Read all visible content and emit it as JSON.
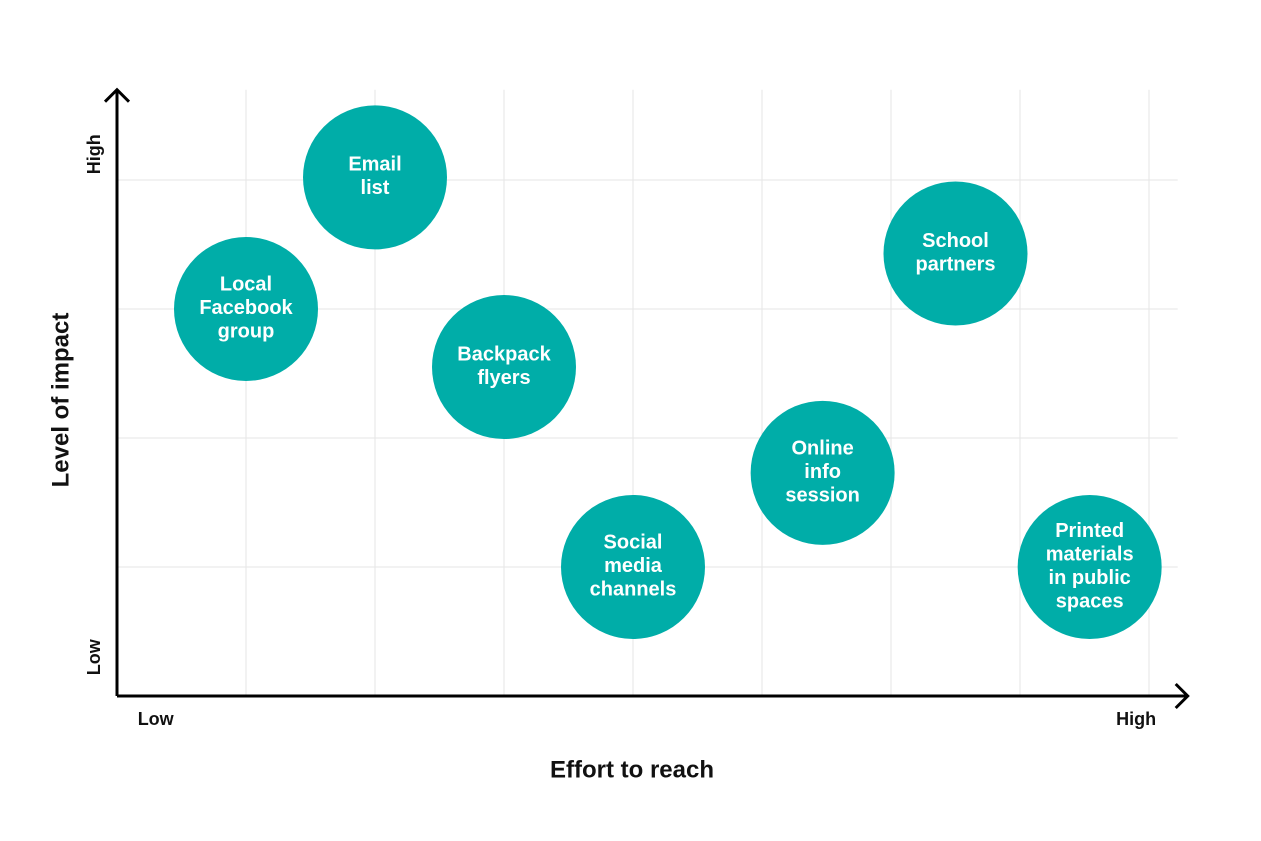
{
  "chart_data": {
    "type": "scatter",
    "x_label": "Effort to reach",
    "y_label": "Level of impact",
    "xlim": [
      0,
      8.3
    ],
    "ylim": [
      0,
      4.7
    ],
    "xticks": [
      {
        "value": 0.3,
        "label": "Low"
      },
      {
        "value": 7.9,
        "label": "High"
      }
    ],
    "yticks": [
      {
        "value": 0.3,
        "label": "Low"
      },
      {
        "value": 4.2,
        "label": "High"
      }
    ],
    "xgrid": [
      1,
      2,
      3,
      4,
      5,
      6,
      7,
      8
    ],
    "ygrid": [
      1,
      2,
      3,
      4
    ],
    "color": "#00ada8",
    "x": [
      1,
      2,
      3,
      4,
      5.47,
      6.5,
      7.54
    ],
    "values": [
      3.0,
      4.02,
      2.55,
      1.0,
      1.73,
      3.43,
      1.0
    ],
    "labels": [
      [
        "Local",
        "Facebook",
        "group"
      ],
      [
        "Email",
        "list"
      ],
      [
        "Backpack",
        "flyers"
      ],
      [
        "Social",
        "media",
        "channels"
      ],
      [
        "Online",
        "info",
        "session"
      ],
      [
        "School",
        "partners"
      ],
      [
        "Printed",
        "materials",
        "in public",
        "spaces"
      ]
    ]
  }
}
